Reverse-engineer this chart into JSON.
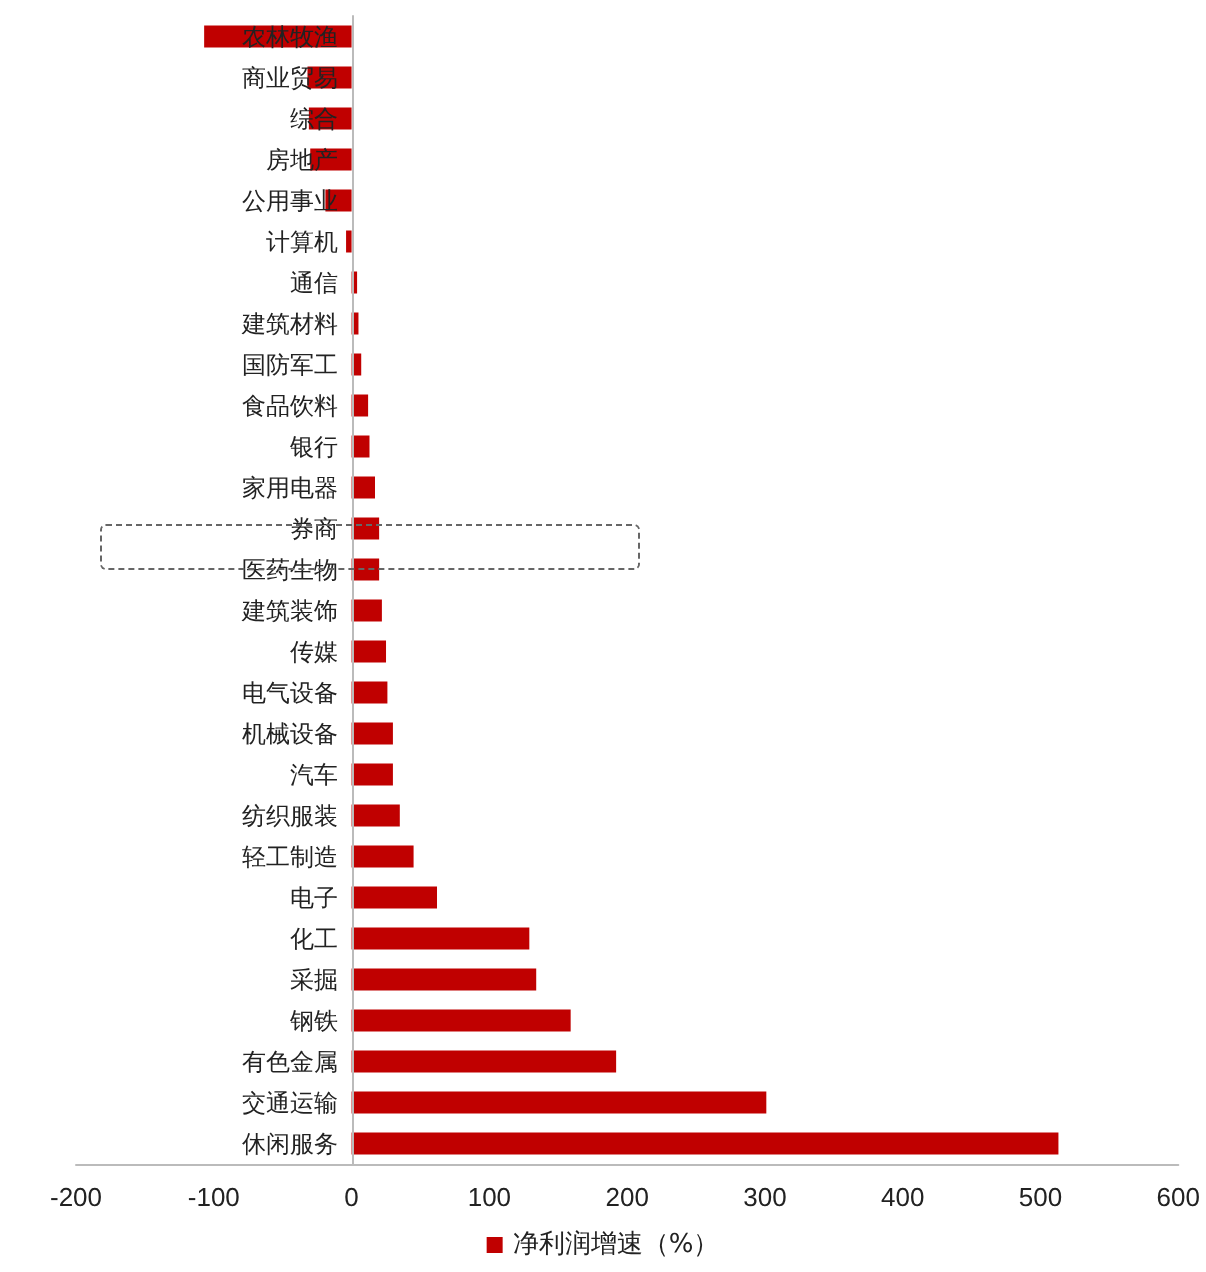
{
  "chart_data": {
    "type": "bar",
    "orientation": "horizontal",
    "categories": [
      "农林牧渔",
      "商业贸易",
      "综合",
      "房地产",
      "公用事业",
      "计算机",
      "通信",
      "建筑材料",
      "国防军工",
      "食品饮料",
      "银行",
      "家用电器",
      "券商",
      "医药生物",
      "建筑装饰",
      "传媒",
      "电气设备",
      "机械设备",
      "汽车",
      "纺织服装",
      "轻工制造",
      "电子",
      "化工",
      "采掘",
      "钢铁",
      "有色金属",
      "交通运输",
      "休闲服务"
    ],
    "series": [
      {
        "name": "净利润增速（%）",
        "color": "#c00000",
        "values": [
          -107,
          -32,
          -31,
          -30,
          -19,
          -4,
          4,
          5,
          7,
          12,
          13,
          17,
          20,
          20,
          22,
          25,
          26,
          30,
          30,
          35,
          45,
          62,
          129,
          134,
          159,
          192,
          301,
          513
        ]
      }
    ],
    "xlim": [
      -200,
      600
    ],
    "xticks": [
      -200,
      -100,
      0,
      100,
      200,
      300,
      400,
      500,
      600
    ],
    "grid": false,
    "legend": "bottom"
  }
}
